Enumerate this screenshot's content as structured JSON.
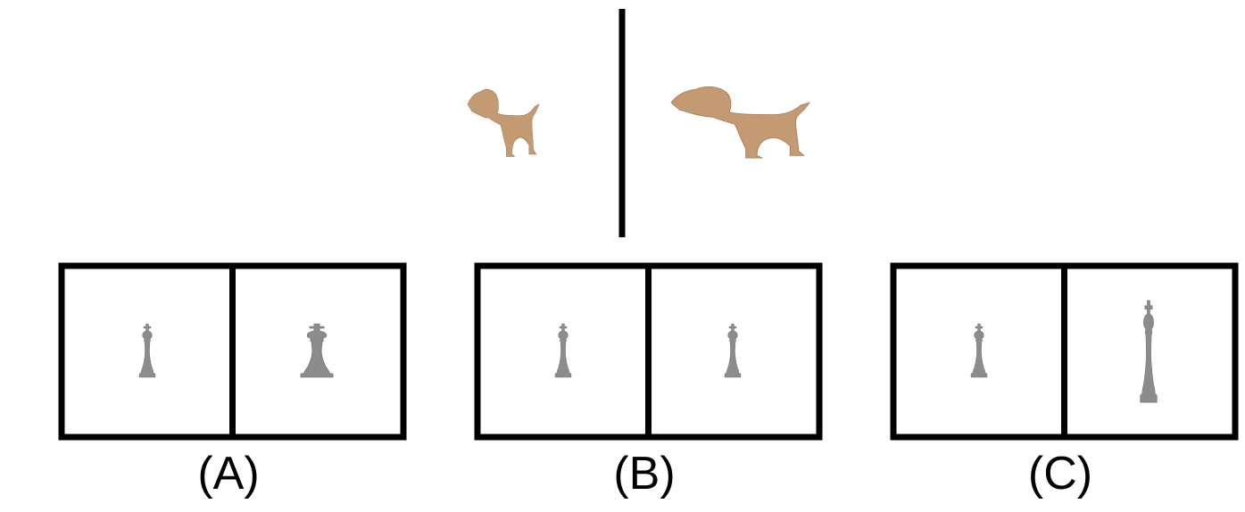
{
  "colors": {
    "dog": "#c49a72",
    "dog_shadow": "#a87d57",
    "piece": "#8c8c8c",
    "piece_shadow": "#6f6f6f",
    "frame": "#000000"
  },
  "example": {
    "left": {
      "icon": "dog-icon"
    },
    "right": {
      "icon": "dog-icon"
    }
  },
  "options": [
    {
      "label": "(A)",
      "left_icon": "chess-king-icon",
      "right_icon": "chess-king-icon"
    },
    {
      "label": "(B)",
      "left_icon": "chess-king-icon",
      "right_icon": "chess-king-icon"
    },
    {
      "label": "(C)",
      "left_icon": "chess-king-icon",
      "right_icon": "chess-king-icon"
    }
  ]
}
